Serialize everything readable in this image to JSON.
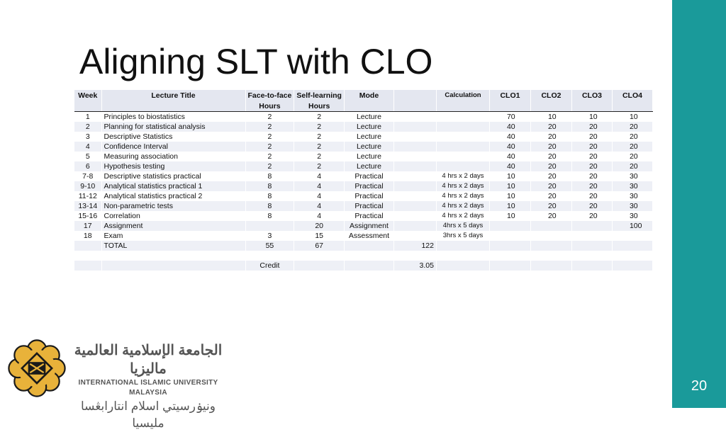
{
  "slide": {
    "title": "Aligning SLT with CLO",
    "page_number": "20",
    "colors": {
      "accent_bar": "#1a9a9a",
      "logo_gold": "#e8b23a",
      "logo_dark": "#1a1a1a"
    }
  },
  "table": {
    "header1": [
      "Week",
      "Lecture Title",
      "Face-to-face",
      "Self-learning",
      "Mode",
      "",
      "Calculation",
      "CLO1",
      "CLO2",
      "CLO3",
      "CLO4"
    ],
    "header2": [
      "",
      "",
      "Hours",
      "Hours",
      "",
      "",
      "",
      "",
      "",
      "",
      ""
    ],
    "rows": [
      [
        "1",
        "Principles to biostatistics",
        "2",
        "2",
        "Lecture",
        "",
        "",
        "70",
        "10",
        "10",
        "10"
      ],
      [
        "2",
        "Planning for statistical analysis",
        "2",
        "2",
        "Lecture",
        "",
        "",
        "40",
        "20",
        "20",
        "20"
      ],
      [
        "3",
        "Descriptive Statistics",
        "2",
        "2",
        "Lecture",
        "",
        "",
        "40",
        "20",
        "20",
        "20"
      ],
      [
        "4",
        "Confidence Interval",
        "2",
        "2",
        "Lecture",
        "",
        "",
        "40",
        "20",
        "20",
        "20"
      ],
      [
        "5",
        "Measuring association",
        "2",
        "2",
        "Lecture",
        "",
        "",
        "40",
        "20",
        "20",
        "20"
      ],
      [
        "6",
        "Hypothesis testing",
        "2",
        "2",
        "Lecture",
        "",
        "",
        "40",
        "20",
        "20",
        "20"
      ],
      [
        "7-8",
        "Descriptive statistics practical",
        "8",
        "4",
        "Practical",
        "",
        "4 hrs x 2 days",
        "10",
        "20",
        "20",
        "30"
      ],
      [
        "9-10",
        "Analytical statistics practical 1",
        "8",
        "4",
        "Practical",
        "",
        "4 hrs x 2 days",
        "10",
        "20",
        "20",
        "30"
      ],
      [
        "11-12",
        "Analytical statistics practical 2",
        "8",
        "4",
        "Practical",
        "",
        "4 hrs x 2 days",
        "10",
        "20",
        "20",
        "30"
      ],
      [
        "13-14",
        "Non-parametric tests",
        "8",
        "4",
        "Practical",
        "",
        "4 hrs x 2 days",
        "10",
        "20",
        "20",
        "30"
      ],
      [
        "15-16",
        "Correlation",
        "8",
        "4",
        "Practical",
        "",
        "4 hrs x 2 days",
        "10",
        "20",
        "20",
        "30"
      ],
      [
        "17",
        "Assignment",
        "",
        "20",
        "Assignment",
        "",
        "4hrs x 5 days",
        "",
        "",
        "",
        "100"
      ],
      [
        "18",
        "Exam",
        "3",
        "15",
        "Assessment",
        "",
        "3hrs x 5 days",
        "",
        "",
        "",
        ""
      ],
      [
        "",
        "TOTAL",
        "55",
        "67",
        "",
        "122",
        "",
        "",
        "",
        "",
        ""
      ],
      [
        "",
        "",
        "",
        "",
        "",
        "",
        "",
        "",
        "",
        "",
        ""
      ],
      [
        "",
        "",
        "Credit",
        "",
        "",
        "3.05",
        "",
        "",
        "",
        "",
        ""
      ]
    ]
  },
  "logo": {
    "arabic_name": "الجامعة الإسلامية العالمية ماليزيا",
    "english_name": "INTERNATIONAL ISLAMIC UNIVERSITY MALAYSIA",
    "jawi_name": "ونيۏرسيتي اسلام انتارابڠسا مليسيا"
  }
}
